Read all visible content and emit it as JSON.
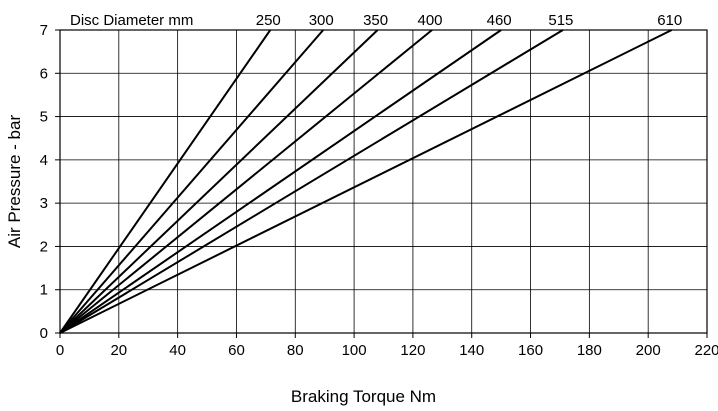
{
  "chart_data": {
    "type": "line",
    "title": "",
    "xlabel": "Braking Torque Nm",
    "ylabel": "Air Pressure - bar",
    "xlim": [
      0,
      220
    ],
    "ylim": [
      0,
      7
    ],
    "xticks": [
      0,
      20,
      40,
      60,
      80,
      100,
      120,
      140,
      160,
      180,
      200,
      220
    ],
    "yticks": [
      0,
      1,
      2,
      3,
      4,
      5,
      6,
      7
    ],
    "grid": true,
    "series_label_header": "Disc Diameter mm",
    "series": [
      {
        "name": "250",
        "x": [
          0,
          71.5
        ],
        "y": [
          0,
          7
        ]
      },
      {
        "name": "300",
        "x": [
          0,
          89.5
        ],
        "y": [
          0,
          7
        ]
      },
      {
        "name": "350",
        "x": [
          0,
          108
        ],
        "y": [
          0,
          7
        ]
      },
      {
        "name": "400",
        "x": [
          0,
          126.5
        ],
        "y": [
          0,
          7
        ]
      },
      {
        "name": "460",
        "x": [
          0,
          150
        ],
        "y": [
          0,
          7
        ]
      },
      {
        "name": "515",
        "x": [
          0,
          171
        ],
        "y": [
          0,
          7
        ]
      },
      {
        "name": "610",
        "x": [
          0,
          208
        ],
        "y": [
          0,
          7
        ]
      }
    ]
  }
}
